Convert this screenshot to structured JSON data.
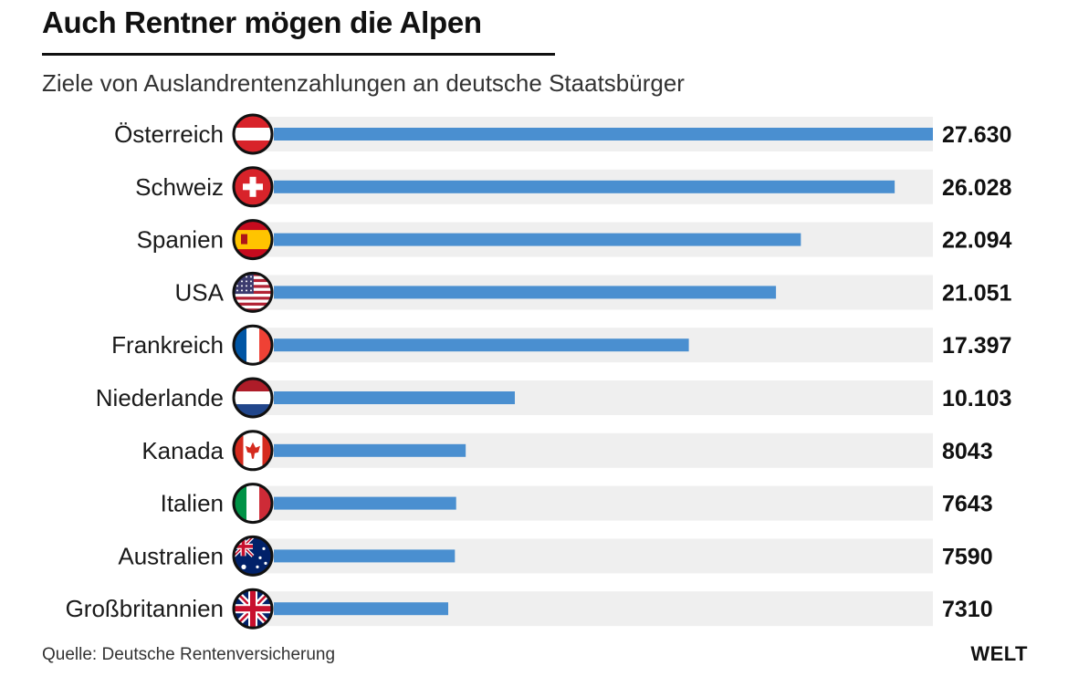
{
  "header": {
    "title": "Auch Rentner mögen die Alpen",
    "subtitle": "Ziele von Auslandrentenzahlungen an deutsche Staatsbürger"
  },
  "footer": {
    "source": "Quelle: Deutsche Rentenversicherung",
    "brand": "WELT"
  },
  "colors": {
    "bar": "#4a8fd0",
    "track": "#efefef",
    "text": "#1a1a1a"
  },
  "chart_data": {
    "type": "bar",
    "orientation": "horizontal",
    "title": "Auch Rentner mögen die Alpen",
    "subtitle": "Ziele von Auslandrentenzahlungen an deutsche Staatsbürger",
    "categories": [
      "Österreich",
      "Schweiz",
      "Spanien",
      "USA",
      "Frankreich",
      "Niederlande",
      "Kanada",
      "Italien",
      "Australien",
      "Großbritannien"
    ],
    "values": [
      27630,
      26028,
      22094,
      21051,
      17397,
      10103,
      8043,
      7643,
      7590,
      7310
    ],
    "value_labels": [
      "27.630",
      "26.028",
      "22.094",
      "21.051",
      "17.397",
      "10.103",
      "8043",
      "7643",
      "7590",
      "7310"
    ],
    "flag_icons": [
      "austria-flag-icon",
      "switzerland-flag-icon",
      "spain-flag-icon",
      "usa-flag-icon",
      "france-flag-icon",
      "netherlands-flag-icon",
      "canada-flag-icon",
      "italy-flag-icon",
      "australia-flag-icon",
      "uk-flag-icon"
    ],
    "xlim": [
      0,
      27630
    ],
    "grid": false,
    "legend": "none"
  }
}
